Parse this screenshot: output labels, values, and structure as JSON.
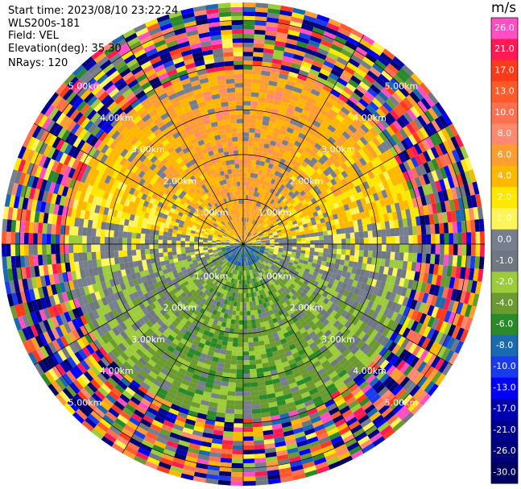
{
  "header": {
    "start_time": "Start time: 2023/08/10 23:22:24",
    "instrument": "WLS200s-181",
    "field": "Field: VEL",
    "elevation": "Elevation(deg): 35.30",
    "nrays": "NRays: 120"
  },
  "chart_data": {
    "type": "heatmap",
    "projection": "polar-ppi",
    "field": "VEL",
    "units": "m/s",
    "elevation_deg": 35.3,
    "n_rays": 120,
    "range_ring_labels": [
      "1.00km",
      "2.00km",
      "3.00km",
      "4.00km",
      "5.00km"
    ],
    "range_rings_km": [
      1,
      2,
      3,
      4,
      5
    ],
    "max_range_km": 5.4,
    "azimuth_spokes_deg": [
      0,
      30,
      60,
      90,
      120,
      150,
      180,
      210,
      240,
      270,
      300,
      330
    ],
    "colorbar": {
      "title": "m/s",
      "tick_labels": [
        "26.0",
        "21.0",
        "17.0",
        "13.0",
        "10.0",
        "8.0",
        "6.0",
        "4.0",
        "2.0",
        "1.0",
        "0.0",
        "-1.0",
        "-2.0",
        "-4.0",
        "-6.0",
        "-8.0",
        "-10.0",
        "-13.0",
        "-17.0",
        "-21.0",
        "-26.0",
        "-30.0"
      ],
      "colors": [
        "#ff4fc4",
        "#ff1a55",
        "#ff3a1a",
        "#ff5a2a",
        "#ff7050",
        "#ff8a70",
        "#ff9e30",
        "#ffb800",
        "#ffe800",
        "#fff45a",
        "#777f8f",
        "#6f7780",
        "#9dcc3a",
        "#6a9a30",
        "#2a8a2a",
        "#1a6ab0",
        "#1a3aee",
        "#0000ff",
        "#0000b0",
        "#000090",
        "#00007a",
        "#000060"
      ]
    },
    "velocity_pattern": {
      "dominant_north": 4.0,
      "dominant_south": -4.0,
      "near_origin": -8.0
    }
  }
}
